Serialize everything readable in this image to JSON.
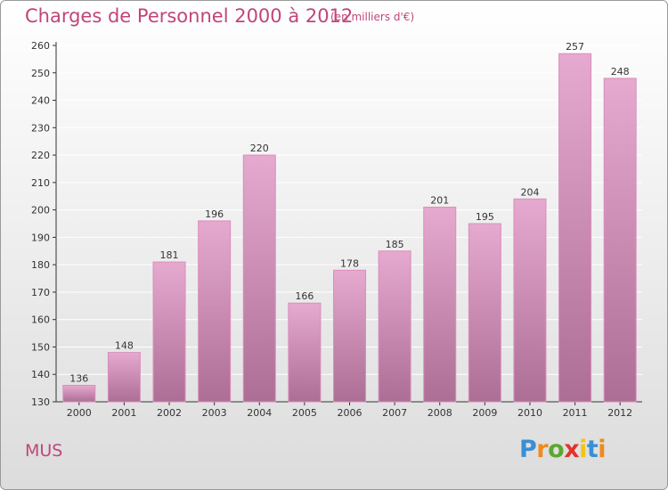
{
  "header": {
    "title": "Charges de Personnel 2000 à 2012",
    "subtitle": "(en milliers d'€)"
  },
  "footer": {
    "commune": "MUS",
    "logo": {
      "letters": [
        "P",
        "r",
        "o",
        "x",
        "i",
        "t",
        "i"
      ],
      "colors": [
        "#3a8fd4",
        "#f08a1c",
        "#5aa82e",
        "#e2342b",
        "#f2c418",
        "#3a8fd4",
        "#f08a1c"
      ]
    }
  },
  "colors": {
    "bar_top": "#e6a9cf",
    "bar_bottom": "#ad6e95",
    "bar_edge": "#d98fbb",
    "text": "#c0457a",
    "grid": "#ffffff"
  },
  "chart_data": {
    "type": "bar",
    "title": "Charges de Personnel 2000 à 2012",
    "subtitle": "(en milliers d'€)",
    "categories": [
      "2000",
      "2001",
      "2002",
      "2003",
      "2004",
      "2005",
      "2006",
      "2007",
      "2008",
      "2009",
      "2010",
      "2011",
      "2012"
    ],
    "values": [
      136,
      148,
      181,
      196,
      220,
      166,
      178,
      185,
      201,
      195,
      204,
      257,
      248
    ],
    "ylim": [
      130,
      260
    ],
    "yticks": [
      130,
      140,
      150,
      160,
      170,
      180,
      190,
      200,
      210,
      220,
      230,
      240,
      250,
      260
    ],
    "grid": true,
    "data_labels": true
  }
}
